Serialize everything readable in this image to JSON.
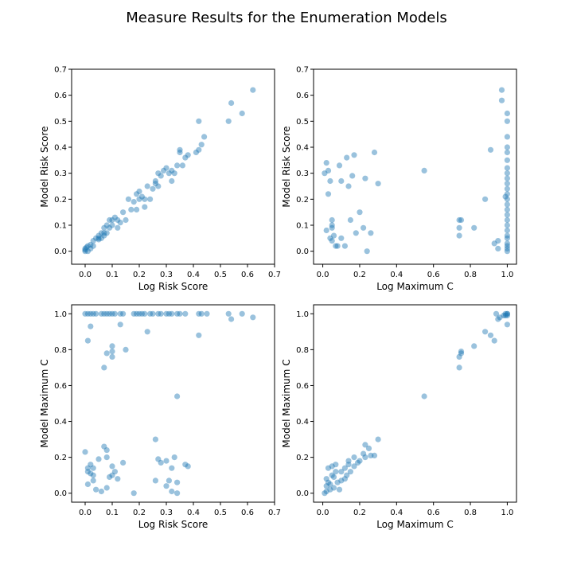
{
  "title": "Measure Results for the Enumeration Models",
  "colors": {
    "point": "#1f77b4"
  },
  "chart_data": [
    {
      "type": "scatter",
      "xlabel": "Log Risk Score",
      "ylabel": "Model Risk Score",
      "xlim": [
        -0.05,
        0.7
      ],
      "ylim": [
        -0.05,
        0.7
      ],
      "xticks": [
        "0.0",
        "0.1",
        "0.2",
        "0.3",
        "0.4",
        "0.5",
        "0.6",
        "0.7"
      ],
      "yticks": [
        "0.0",
        "0.1",
        "0.2",
        "0.3",
        "0.4",
        "0.5",
        "0.6",
        "0.7"
      ],
      "points": [
        [
          0.0,
          0.0
        ],
        [
          0.0,
          0.01
        ],
        [
          0.005,
          0.015
        ],
        [
          0.01,
          0.02
        ],
        [
          0.0,
          0.005
        ],
        [
          0.01,
          0.0
        ],
        [
          0.02,
          0.01
        ],
        [
          0.02,
          0.025
        ],
        [
          0.03,
          0.02
        ],
        [
          0.03,
          0.04
        ],
        [
          0.04,
          0.05
        ],
        [
          0.05,
          0.045
        ],
        [
          0.05,
          0.06
        ],
        [
          0.06,
          0.05
        ],
        [
          0.06,
          0.07
        ],
        [
          0.07,
          0.06
        ],
        [
          0.07,
          0.09
        ],
        [
          0.08,
          0.07
        ],
        [
          0.08,
          0.1
        ],
        [
          0.09,
          0.12
        ],
        [
          0.09,
          0.09
        ],
        [
          0.1,
          0.1
        ],
        [
          0.1,
          0.12
        ],
        [
          0.11,
          0.13
        ],
        [
          0.12,
          0.12
        ],
        [
          0.12,
          0.09
        ],
        [
          0.13,
          0.11
        ],
        [
          0.14,
          0.15
        ],
        [
          0.15,
          0.12
        ],
        [
          0.16,
          0.2
        ],
        [
          0.17,
          0.16
        ],
        [
          0.18,
          0.19
        ],
        [
          0.19,
          0.22
        ],
        [
          0.2,
          0.2
        ],
        [
          0.2,
          0.23
        ],
        [
          0.21,
          0.21
        ],
        [
          0.22,
          0.17
        ],
        [
          0.22,
          0.2
        ],
        [
          0.23,
          0.25
        ],
        [
          0.24,
          0.2
        ],
        [
          0.25,
          0.24
        ],
        [
          0.26,
          0.27
        ],
        [
          0.27,
          0.25
        ],
        [
          0.27,
          0.3
        ],
        [
          0.28,
          0.29
        ],
        [
          0.29,
          0.31
        ],
        [
          0.3,
          0.32
        ],
        [
          0.31,
          0.3
        ],
        [
          0.32,
          0.27
        ],
        [
          0.32,
          0.31
        ],
        [
          0.33,
          0.3
        ],
        [
          0.34,
          0.33
        ],
        [
          0.35,
          0.38
        ],
        [
          0.35,
          0.39
        ],
        [
          0.36,
          0.33
        ],
        [
          0.37,
          0.36
        ],
        [
          0.38,
          0.37
        ],
        [
          0.41,
          0.38
        ],
        [
          0.42,
          0.39
        ],
        [
          0.43,
          0.41
        ],
        [
          0.44,
          0.44
        ],
        [
          0.42,
          0.5
        ],
        [
          0.53,
          0.5
        ],
        [
          0.54,
          0.57
        ],
        [
          0.58,
          0.53
        ],
        [
          0.62,
          0.62
        ],
        [
          0.05,
          0.05
        ],
        [
          0.07,
          0.07
        ],
        [
          0.19,
          0.16
        ],
        [
          0.26,
          0.26
        ]
      ]
    },
    {
      "type": "scatter",
      "xlabel": "Log Maximum C",
      "ylabel": "Model Risk Score",
      "xlim": [
        -0.05,
        1.05
      ],
      "ylim": [
        -0.05,
        0.7
      ],
      "xticks": [
        "0.0",
        "0.2",
        "0.4",
        "0.6",
        "0.8",
        "1.0"
      ],
      "yticks": [
        "0.0",
        "0.1",
        "0.2",
        "0.3",
        "0.4",
        "0.5",
        "0.6",
        "0.7"
      ],
      "points": [
        [
          0.01,
          0.3
        ],
        [
          0.02,
          0.34
        ],
        [
          0.03,
          0.31
        ],
        [
          0.03,
          0.22
        ],
        [
          0.04,
          0.27
        ],
        [
          0.05,
          0.09
        ],
        [
          0.05,
          0.12
        ],
        [
          0.05,
          0.1
        ],
        [
          0.02,
          0.08
        ],
        [
          0.04,
          0.05
        ],
        [
          0.05,
          0.04
        ],
        [
          0.06,
          0.06
        ],
        [
          0.07,
          0.02
        ],
        [
          0.08,
          0.02
        ],
        [
          0.09,
          0.33
        ],
        [
          0.1,
          0.27
        ],
        [
          0.12,
          0.02
        ],
        [
          0.13,
          0.36
        ],
        [
          0.14,
          0.25
        ],
        [
          0.16,
          0.29
        ],
        [
          0.17,
          0.37
        ],
        [
          0.18,
          0.07
        ],
        [
          0.2,
          0.15
        ],
        [
          0.22,
          0.09
        ],
        [
          0.23,
          0.28
        ],
        [
          0.24,
          0.0
        ],
        [
          0.26,
          0.07
        ],
        [
          0.28,
          0.38
        ],
        [
          0.3,
          0.26
        ],
        [
          0.1,
          0.05
        ],
        [
          0.15,
          0.12
        ],
        [
          0.55,
          0.31
        ],
        [
          0.74,
          0.12
        ],
        [
          0.74,
          0.09
        ],
        [
          0.75,
          0.12
        ],
        [
          0.74,
          0.06
        ],
        [
          0.82,
          0.09
        ],
        [
          0.88,
          0.2
        ],
        [
          0.91,
          0.39
        ],
        [
          0.93,
          0.03
        ],
        [
          0.95,
          0.04
        ],
        [
          0.95,
          0.01
        ],
        [
          0.97,
          0.62
        ],
        [
          0.97,
          0.58
        ],
        [
          1.0,
          0.0
        ],
        [
          1.0,
          0.01
        ],
        [
          1.0,
          0.02
        ],
        [
          1.0,
          0.03
        ],
        [
          1.0,
          0.05
        ],
        [
          1.0,
          0.06
        ],
        [
          1.0,
          0.08
        ],
        [
          1.0,
          0.1
        ],
        [
          1.0,
          0.12
        ],
        [
          1.0,
          0.14
        ],
        [
          1.0,
          0.16
        ],
        [
          1.0,
          0.18
        ],
        [
          1.0,
          0.2
        ],
        [
          1.0,
          0.22
        ],
        [
          1.0,
          0.24
        ],
        [
          1.0,
          0.26
        ],
        [
          1.0,
          0.28
        ],
        [
          1.0,
          0.3
        ],
        [
          1.0,
          0.32
        ],
        [
          1.0,
          0.35
        ],
        [
          1.0,
          0.38
        ],
        [
          1.0,
          0.4
        ],
        [
          1.0,
          0.44
        ],
        [
          1.0,
          0.5
        ],
        [
          1.0,
          0.53
        ],
        [
          0.99,
          0.21
        ]
      ]
    },
    {
      "type": "scatter",
      "xlabel": "Log Risk Score",
      "ylabel": "Model Maximum C",
      "xlim": [
        -0.05,
        0.7
      ],
      "ylim": [
        -0.05,
        1.05
      ],
      "xticks": [
        "0.0",
        "0.1",
        "0.2",
        "0.3",
        "0.4",
        "0.5",
        "0.6",
        "0.7"
      ],
      "yticks": [
        "0.0",
        "0.2",
        "0.4",
        "0.6",
        "0.8",
        "1.0"
      ],
      "points": [
        [
          0.0,
          1.0
        ],
        [
          0.01,
          1.0
        ],
        [
          0.02,
          1.0
        ],
        [
          0.03,
          1.0
        ],
        [
          0.04,
          1.0
        ],
        [
          0.06,
          1.0
        ],
        [
          0.07,
          1.0
        ],
        [
          0.08,
          1.0
        ],
        [
          0.09,
          1.0
        ],
        [
          0.1,
          1.0
        ],
        [
          0.11,
          1.0
        ],
        [
          0.13,
          1.0
        ],
        [
          0.14,
          1.0
        ],
        [
          0.18,
          1.0
        ],
        [
          0.19,
          1.0
        ],
        [
          0.2,
          1.0
        ],
        [
          0.21,
          1.0
        ],
        [
          0.22,
          1.0
        ],
        [
          0.24,
          1.0
        ],
        [
          0.25,
          1.0
        ],
        [
          0.27,
          1.0
        ],
        [
          0.28,
          1.0
        ],
        [
          0.3,
          1.0
        ],
        [
          0.31,
          1.0
        ],
        [
          0.32,
          1.0
        ],
        [
          0.34,
          1.0
        ],
        [
          0.35,
          1.0
        ],
        [
          0.37,
          1.0
        ],
        [
          0.42,
          1.0
        ],
        [
          0.43,
          1.0
        ],
        [
          0.45,
          1.0
        ],
        [
          0.53,
          1.0
        ],
        [
          0.58,
          1.0
        ],
        [
          0.02,
          0.93
        ],
        [
          0.01,
          0.85
        ],
        [
          0.07,
          0.7
        ],
        [
          0.08,
          0.78
        ],
        [
          0.1,
          0.76
        ],
        [
          0.1,
          0.79
        ],
        [
          0.1,
          0.82
        ],
        [
          0.13,
          0.94
        ],
        [
          0.15,
          0.8
        ],
        [
          0.23,
          0.9
        ],
        [
          0.42,
          0.88
        ],
        [
          0.54,
          0.97
        ],
        [
          0.62,
          0.98
        ],
        [
          0.34,
          0.54
        ],
        [
          0.0,
          0.23
        ],
        [
          0.01,
          0.14
        ],
        [
          0.01,
          0.12
        ],
        [
          0.01,
          0.05
        ],
        [
          0.02,
          0.16
        ],
        [
          0.02,
          0.11
        ],
        [
          0.03,
          0.07
        ],
        [
          0.03,
          0.1
        ],
        [
          0.04,
          0.02
        ],
        [
          0.05,
          0.19
        ],
        [
          0.06,
          0.01
        ],
        [
          0.07,
          0.26
        ],
        [
          0.08,
          0.24
        ],
        [
          0.08,
          0.2
        ],
        [
          0.08,
          0.03
        ],
        [
          0.09,
          0.09
        ],
        [
          0.1,
          0.15
        ],
        [
          0.1,
          0.1
        ],
        [
          0.11,
          0.12
        ],
        [
          0.12,
          0.08
        ],
        [
          0.14,
          0.17
        ],
        [
          0.18,
          0.0
        ],
        [
          0.26,
          0.3
        ],
        [
          0.26,
          0.07
        ],
        [
          0.27,
          0.19
        ],
        [
          0.28,
          0.17
        ],
        [
          0.3,
          0.18
        ],
        [
          0.3,
          0.04
        ],
        [
          0.31,
          0.07
        ],
        [
          0.32,
          0.14
        ],
        [
          0.32,
          0.01
        ],
        [
          0.33,
          0.2
        ],
        [
          0.34,
          0.0
        ],
        [
          0.34,
          0.06
        ],
        [
          0.37,
          0.16
        ],
        [
          0.38,
          0.15
        ],
        [
          0.03,
          0.14
        ]
      ]
    },
    {
      "type": "scatter",
      "xlabel": "Log Maximum C",
      "ylabel": "Model Maximum C",
      "xlim": [
        -0.05,
        1.05
      ],
      "ylim": [
        -0.05,
        1.05
      ],
      "xticks": [
        "0.0",
        "0.2",
        "0.4",
        "0.6",
        "0.8",
        "1.0"
      ],
      "yticks": [
        "0.0",
        "0.2",
        "0.4",
        "0.6",
        "0.8",
        "1.0"
      ],
      "points": [
        [
          0.01,
          0.0
        ],
        [
          0.02,
          0.01
        ],
        [
          0.02,
          0.04
        ],
        [
          0.02,
          0.08
        ],
        [
          0.03,
          0.06
        ],
        [
          0.03,
          0.14
        ],
        [
          0.04,
          0.02
        ],
        [
          0.04,
          0.05
        ],
        [
          0.05,
          0.1
        ],
        [
          0.05,
          0.15
        ],
        [
          0.06,
          0.03
        ],
        [
          0.06,
          0.09
        ],
        [
          0.07,
          0.12
        ],
        [
          0.07,
          0.16
        ],
        [
          0.08,
          0.06
        ],
        [
          0.09,
          0.02
        ],
        [
          0.1,
          0.07
        ],
        [
          0.1,
          0.12
        ],
        [
          0.12,
          0.08
        ],
        [
          0.12,
          0.14
        ],
        [
          0.13,
          0.1
        ],
        [
          0.14,
          0.16
        ],
        [
          0.14,
          0.18
        ],
        [
          0.15,
          0.12
        ],
        [
          0.17,
          0.2
        ],
        [
          0.17,
          0.15
        ],
        [
          0.19,
          0.17
        ],
        [
          0.2,
          0.18
        ],
        [
          0.22,
          0.22
        ],
        [
          0.23,
          0.2
        ],
        [
          0.23,
          0.27
        ],
        [
          0.25,
          0.25
        ],
        [
          0.26,
          0.21
        ],
        [
          0.28,
          0.21
        ],
        [
          0.3,
          0.3
        ],
        [
          0.55,
          0.54
        ],
        [
          0.74,
          0.7
        ],
        [
          0.74,
          0.76
        ],
        [
          0.75,
          0.78
        ],
        [
          0.75,
          0.79
        ],
        [
          0.82,
          0.82
        ],
        [
          0.88,
          0.9
        ],
        [
          0.91,
          0.88
        ],
        [
          0.93,
          0.85
        ],
        [
          0.94,
          1.0
        ],
        [
          0.95,
          0.97
        ],
        [
          0.96,
          0.98
        ],
        [
          0.98,
          0.99
        ],
        [
          0.99,
          1.0
        ],
        [
          1.0,
          1.0
        ],
        [
          1.0,
          0.99
        ],
        [
          1.0,
          0.94
        ],
        [
          1.0,
          1.0
        ],
        [
          0.99,
          0.99
        ]
      ]
    }
  ]
}
